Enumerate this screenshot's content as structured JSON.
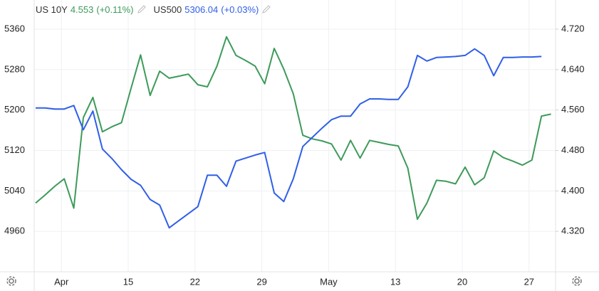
{
  "chart_data": {
    "type": "line",
    "categories": [
      null,
      null,
      null,
      "Apr",
      null,
      null,
      null,
      null,
      null,
      null,
      "15",
      null,
      null,
      null,
      null,
      null,
      null,
      "22",
      null,
      null,
      null,
      null,
      null,
      null,
      "29",
      null,
      null,
      null,
      null,
      null,
      null,
      "May",
      null,
      null,
      null,
      null,
      null,
      null,
      "13",
      null,
      null,
      null,
      null,
      null,
      null,
      "20",
      null,
      null,
      null,
      null,
      null,
      null,
      "27",
      null,
      null
    ],
    "series": [
      {
        "name": "US 10Y",
        "last": 4.553,
        "change": "(+0.11%)",
        "color": "#3d9a5a",
        "axis": "y2",
        "values": [
          4.376,
          4.392,
          4.409,
          4.424,
          4.366,
          4.545,
          4.585,
          4.517,
          4.527,
          4.535,
          4.603,
          4.669,
          4.589,
          4.637,
          4.623,
          4.627,
          4.631,
          4.61,
          4.606,
          4.647,
          4.705,
          4.668,
          4.658,
          4.647,
          4.612,
          4.682,
          4.641,
          4.592,
          4.51,
          4.503,
          4.499,
          4.493,
          4.461,
          4.5,
          4.465,
          4.5,
          4.496,
          4.492,
          4.489,
          4.445,
          4.344,
          4.376,
          4.421,
          4.419,
          4.414,
          4.447,
          4.412,
          4.426,
          4.479,
          4.466,
          4.459,
          4.451,
          4.461,
          4.548,
          4.552
        ]
      },
      {
        "name": "US500",
        "last": 5306.04,
        "change": "(+0.03%)",
        "color": "#2f5fe8",
        "values": [
          5204,
          5204,
          5202,
          5202,
          5209,
          5161,
          5198,
          5123,
          5104,
          5082,
          5063,
          5051,
          5023,
          5012,
          4967,
          4981,
          4995,
          5009,
          5071,
          5071,
          5049,
          5099,
          5105,
          5111,
          5116,
          5036,
          5019,
          5064,
          5128,
          5146,
          5164,
          5181,
          5188,
          5188,
          5212,
          5222,
          5222,
          5221,
          5221,
          5246,
          5308,
          5297,
          5304,
          5305,
          5306,
          5308,
          5321,
          5308,
          5268,
          5304,
          5304,
          5305,
          5305,
          5306,
          null
        ]
      }
    ],
    "ylim": [
      4880,
      5360
    ],
    "yticks": [
      4960,
      5040,
      5120,
      5200,
      5280,
      5360
    ],
    "y2lim": [
      4.24,
      4.72
    ],
    "y2ticks": [
      {
        "value": 4.32,
        "label": "4.320"
      },
      {
        "value": 4.4,
        "label": "4.400"
      },
      {
        "value": 4.48,
        "label": "4.480"
      },
      {
        "value": 4.56,
        "label": "4.560"
      },
      {
        "value": 4.64,
        "label": "4.640"
      },
      {
        "value": 4.72,
        "label": "4.720"
      }
    ],
    "grid": true
  }
}
